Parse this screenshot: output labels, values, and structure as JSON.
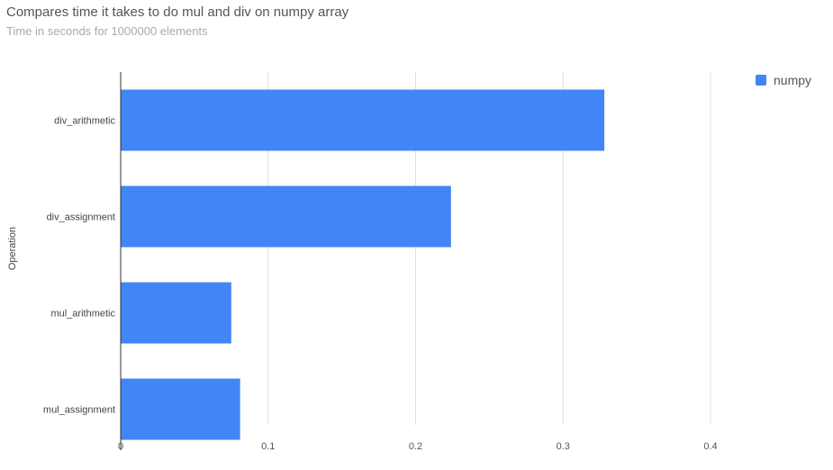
{
  "chart_data": {
    "type": "bar",
    "orientation": "horizontal",
    "title": "Compares time it takes to do mul and div on numpy array",
    "subtitle": "Time in seconds for 1000000 elements",
    "xlabel": "",
    "ylabel": "Operation",
    "categories": [
      "div_arithmetic",
      "div_assignment",
      "mul_arithmetic",
      "mul_assignment"
    ],
    "series": [
      {
        "name": "numpy",
        "color": "#4285f4",
        "values": [
          0.328,
          0.224,
          0.075,
          0.081
        ]
      }
    ],
    "xlim": [
      0,
      0.48
    ],
    "xticks": [
      0,
      0.1,
      0.2,
      0.3,
      0.4
    ],
    "xtick_labels": [
      "0",
      "0.1",
      "0.2",
      "0.3",
      "0.4"
    ],
    "grid": true,
    "legend_position": "top-right"
  }
}
